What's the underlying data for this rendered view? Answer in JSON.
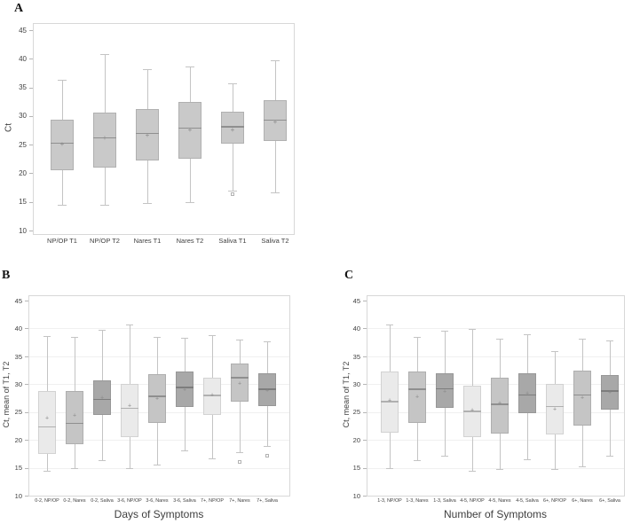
{
  "figure": {
    "background": "#ffffff"
  },
  "palette": {
    "default": {
      "fill": "#c9c9c9",
      "border": "#b0b0b0",
      "median": "#8f8f8f"
    },
    "light": {
      "fill": "#eaeaea",
      "border": "#d2d2d2",
      "median": "#b0b0b0"
    },
    "medium": {
      "fill": "#c5c5c5",
      "border": "#aeaeae",
      "median": "#8f8f8f"
    },
    "dark": {
      "fill": "#a8a8a8",
      "border": "#979797",
      "median": "#7d7d7d"
    },
    "whisker": "#c4c4c4",
    "mean_marker_color": "#8a8a8a",
    "outlier_color": "#b2b2b2",
    "frame": "#d8d8d8",
    "grid": "#f0f0f0",
    "tick": "#b5b5b5",
    "text": "#3f3f3f"
  },
  "chart_data": [
    {
      "panel_label": "A",
      "type": "box",
      "title": "",
      "xlabel": "",
      "ylabel": "Ct",
      "ylim": [
        10,
        45
      ],
      "yticks": [
        10,
        15,
        20,
        25,
        30,
        35,
        40,
        45
      ],
      "grid": false,
      "mean_marker": "+",
      "boxes": [
        {
          "category": "NP/OP T1",
          "shade": "default",
          "whisker_low": 14.5,
          "q1": 20.6,
          "median": 25.4,
          "mean": 25.0,
          "q3": 29.3,
          "whisker_high": 36.4,
          "outliers": []
        },
        {
          "category": "NP/OP T2",
          "shade": "default",
          "whisker_low": 14.5,
          "q1": 21.0,
          "median": 26.3,
          "mean": 26.1,
          "q3": 30.6,
          "whisker_high": 40.8,
          "outliers": []
        },
        {
          "category": "Nares T1",
          "shade": "default",
          "whisker_low": 14.8,
          "q1": 22.3,
          "median": 27.1,
          "mean": 26.6,
          "q3": 31.2,
          "whisker_high": 38.2,
          "outliers": []
        },
        {
          "category": "Nares T2",
          "shade": "default",
          "whisker_low": 15.0,
          "q1": 22.5,
          "median": 28.0,
          "mean": 27.5,
          "q3": 32.5,
          "whisker_high": 38.7,
          "outliers": []
        },
        {
          "category": "Saliva T1",
          "shade": "default",
          "whisker_low": 17.0,
          "q1": 25.1,
          "median": 28.2,
          "mean": 27.5,
          "q3": 30.8,
          "whisker_high": 35.7,
          "outliers": [
            16.4
          ]
        },
        {
          "category": "Saliva T2",
          "shade": "default",
          "whisker_low": 16.7,
          "q1": 25.6,
          "median": 29.4,
          "mean": 28.9,
          "q3": 32.8,
          "whisker_high": 39.7,
          "outliers": []
        }
      ]
    },
    {
      "panel_label": "B",
      "type": "box",
      "title": "",
      "xlabel": "Days of Symptoms",
      "ylabel": "Ct, mean of T1, T2",
      "ylim": [
        10,
        45
      ],
      "yticks": [
        10,
        15,
        20,
        25,
        30,
        35,
        40,
        45
      ],
      "grid": true,
      "mean_marker": "+",
      "boxes": [
        {
          "category": "0-2,  NP/OP",
          "shade": "light",
          "whisker_low": 14.5,
          "q1": 17.4,
          "median": 22.4,
          "mean": 23.8,
          "q3": 28.8,
          "whisker_high": 38.7,
          "outliers": []
        },
        {
          "category": "0-2, Nares",
          "shade": "medium",
          "whisker_low": 14.9,
          "q1": 19.2,
          "median": 23.1,
          "mean": 24.3,
          "q3": 28.8,
          "whisker_high": 38.4,
          "outliers": []
        },
        {
          "category": "0-2, Saliva",
          "shade": "dark",
          "whisker_low": 16.4,
          "q1": 24.5,
          "median": 27.4,
          "mean": 27.5,
          "q3": 30.7,
          "whisker_high": 39.7,
          "outliers": []
        },
        {
          "category": "3-6,  NP/OP",
          "shade": "light",
          "whisker_low": 15.0,
          "q1": 20.5,
          "median": 25.8,
          "mean": 26.0,
          "q3": 30.0,
          "whisker_high": 40.7,
          "outliers": []
        },
        {
          "category": "3-6, Nares",
          "shade": "medium",
          "whisker_low": 15.5,
          "q1": 23.0,
          "median": 27.9,
          "mean": 27.4,
          "q3": 31.8,
          "whisker_high": 38.5,
          "outliers": []
        },
        {
          "category": "3-6, Saliva",
          "shade": "dark",
          "whisker_low": 18.1,
          "q1": 25.9,
          "median": 29.5,
          "mean": 28.9,
          "q3": 32.3,
          "whisker_high": 38.3,
          "outliers": []
        },
        {
          "category": "7+,  NP/OP",
          "shade": "light",
          "whisker_low": 16.7,
          "q1": 24.5,
          "median": 28.1,
          "mean": 28.0,
          "q3": 31.1,
          "whisker_high": 38.8,
          "outliers": []
        },
        {
          "category": "7+, Nares",
          "shade": "medium",
          "whisker_low": 17.8,
          "q1": 26.8,
          "median": 31.3,
          "mean": 30.1,
          "q3": 33.7,
          "whisker_high": 38.0,
          "outliers": [
            16.1
          ]
        },
        {
          "category": "7+, Saliva",
          "shade": "dark",
          "whisker_low": 18.9,
          "q1": 26.1,
          "median": 29.2,
          "mean": 28.7,
          "q3": 31.9,
          "whisker_high": 37.7,
          "outliers": [
            17.2
          ]
        }
      ]
    },
    {
      "panel_label": "C",
      "type": "box",
      "title": "",
      "xlabel": "Number of Symptoms",
      "ylabel": "Ct, mean of T1, T2",
      "ylim": [
        10,
        45
      ],
      "yticks": [
        10,
        15,
        20,
        25,
        30,
        35,
        40,
        45
      ],
      "grid": true,
      "mean_marker": "+",
      "boxes": [
        {
          "category": "1-3,  NP/OP",
          "shade": "light",
          "whisker_low": 15.0,
          "q1": 21.3,
          "median": 27.0,
          "mean": 27.0,
          "q3": 32.2,
          "whisker_high": 40.7,
          "outliers": []
        },
        {
          "category": "1-3, Nares",
          "shade": "medium",
          "whisker_low": 16.3,
          "q1": 23.0,
          "median": 29.2,
          "mean": 27.7,
          "q3": 32.3,
          "whisker_high": 38.5,
          "outliers": []
        },
        {
          "category": "1-3, Saliva",
          "shade": "dark",
          "whisker_low": 17.2,
          "q1": 25.7,
          "median": 29.3,
          "mean": 28.6,
          "q3": 32.0,
          "whisker_high": 39.6,
          "outliers": []
        },
        {
          "category": "4-5,  NP/OP",
          "shade": "light",
          "whisker_low": 14.5,
          "q1": 20.5,
          "median": 25.2,
          "mean": 25.3,
          "q3": 29.7,
          "whisker_high": 39.9,
          "outliers": []
        },
        {
          "category": "4-5, Nares",
          "shade": "medium",
          "whisker_low": 14.8,
          "q1": 21.1,
          "median": 26.5,
          "mean": 26.6,
          "q3": 31.1,
          "whisker_high": 38.1,
          "outliers": []
        },
        {
          "category": "4-5, Saliva",
          "shade": "dark",
          "whisker_low": 16.5,
          "q1": 24.8,
          "median": 28.2,
          "mean": 28.3,
          "q3": 32.0,
          "whisker_high": 38.9,
          "outliers": []
        },
        {
          "category": "6+,  NP/OP",
          "shade": "light",
          "whisker_low": 14.8,
          "q1": 20.9,
          "median": 26.1,
          "mean": 25.5,
          "q3": 30.0,
          "whisker_high": 35.9,
          "outliers": []
        },
        {
          "category": "6+, Nares",
          "shade": "medium",
          "whisker_low": 15.3,
          "q1": 22.5,
          "median": 28.2,
          "mean": 27.5,
          "q3": 32.5,
          "whisker_high": 38.1,
          "outliers": []
        },
        {
          "category": "6+, Saliva",
          "shade": "dark",
          "whisker_low": 17.2,
          "q1": 25.5,
          "median": 28.9,
          "mean": 28.5,
          "q3": 31.6,
          "whisker_high": 37.8,
          "outliers": []
        }
      ]
    }
  ]
}
